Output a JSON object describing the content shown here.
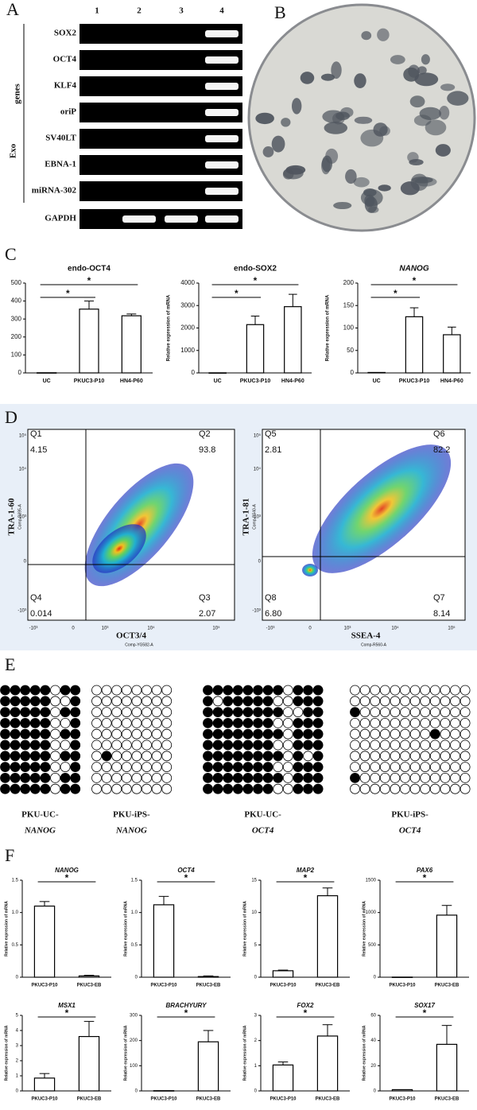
{
  "panel_labels": [
    "A",
    "B",
    "C",
    "D",
    "E",
    "F"
  ],
  "gel": {
    "lanes": [
      "1",
      "2",
      "3",
      "4"
    ],
    "group_label": [
      "genes",
      "Exo"
    ],
    "rows": [
      {
        "label": "SOX2",
        "bands": [
          0,
          0,
          0,
          1
        ]
      },
      {
        "label": "OCT4",
        "bands": [
          0,
          0,
          0,
          1
        ]
      },
      {
        "label": "KLF4",
        "bands": [
          0,
          0,
          0,
          1
        ]
      },
      {
        "label": "oriP",
        "bands": [
          0,
          0,
          0,
          1
        ]
      },
      {
        "label": "SV40LT",
        "bands": [
          0,
          0,
          0,
          1
        ]
      },
      {
        "label": "EBNA-1",
        "bands": [
          0,
          0,
          0,
          1
        ]
      },
      {
        "label": "miRNA-302",
        "bands": [
          0,
          0,
          0,
          1
        ]
      },
      {
        "label": "GAPDH",
        "bands": [
          0,
          1,
          1,
          1
        ]
      }
    ]
  },
  "flow": [
    {
      "y_label": "TRA-1-60",
      "y_sub": "Comp-B695-A",
      "x_label": "OCT3/4",
      "x_sub": "Comp-YG582-A",
      "x_ticks": [
        "-10³",
        "0",
        "10³",
        "10⁴",
        "10⁵"
      ],
      "y_ticks": [
        "10⁵",
        "10⁴",
        "10³",
        "0",
        "-10³"
      ],
      "quadrants": [
        {
          "name": "Q1",
          "value": 4.15
        },
        {
          "name": "Q2",
          "value": 93.8
        },
        {
          "name": "Q3",
          "value": 2.07
        },
        {
          "name": "Q4",
          "value": 0.014
        }
      ]
    },
    {
      "y_label": "TRA-1-81",
      "y_sub": "Comp-B540-A",
      "x_label": "SSEA-4",
      "x_sub": "Comp-R560-A",
      "x_ticks": [
        "-10³",
        "0",
        "10³",
        "10⁴",
        "10⁵"
      ],
      "y_ticks": [
        "10⁵",
        "10⁴",
        "10³",
        "0",
        "-10³"
      ],
      "quadrants": [
        {
          "name": "Q5",
          "value": 2.81
        },
        {
          "name": "Q6",
          "value": 82.2
        },
        {
          "name": "Q7",
          "value": 8.14
        },
        {
          "name": "Q8",
          "value": 6.8,
          "label": "6.80"
        }
      ]
    }
  ],
  "methylation": [
    {
      "label": "PKU-UC-",
      "gene": "NANOG",
      "rows": [
        [
          1,
          1,
          1,
          1,
          1,
          0,
          1,
          1
        ],
        [
          1,
          1,
          1,
          1,
          1,
          0,
          0,
          1
        ],
        [
          1,
          1,
          1,
          1,
          1,
          0,
          1,
          1
        ],
        [
          1,
          1,
          1,
          1,
          1,
          0,
          0,
          1
        ],
        [
          1,
          1,
          1,
          1,
          1,
          0,
          1,
          1
        ],
        [
          1,
          1,
          1,
          1,
          1,
          0,
          0,
          1
        ],
        [
          1,
          1,
          1,
          1,
          1,
          0,
          1,
          1
        ],
        [
          1,
          1,
          1,
          1,
          1,
          0,
          0,
          1
        ],
        [
          1,
          1,
          1,
          1,
          1,
          0,
          1,
          1
        ],
        [
          1,
          1,
          1,
          1,
          1,
          0,
          1,
          1
        ]
      ]
    },
    {
      "label": "PKU-iPS-",
      "gene": "NANOG",
      "rows": [
        [
          0,
          0,
          0,
          0,
          0,
          0,
          0,
          0
        ],
        [
          0,
          0,
          0,
          0,
          0,
          0,
          0,
          0
        ],
        [
          0,
          0,
          0,
          0,
          0,
          0,
          0,
          0
        ],
        [
          0,
          0,
          0,
          0,
          0,
          0,
          0,
          0
        ],
        [
          0,
          0,
          0,
          0,
          0,
          0,
          0,
          0
        ],
        [
          0,
          0,
          0,
          0,
          0,
          0,
          0,
          0
        ],
        [
          0,
          1,
          0,
          0,
          0,
          0,
          0,
          0
        ],
        [
          0,
          0,
          0,
          0,
          0,
          0,
          0,
          0
        ],
        [
          0,
          0,
          0,
          0,
          0,
          0,
          0,
          0
        ],
        [
          0,
          0,
          0,
          0,
          0,
          0,
          0,
          0
        ]
      ]
    },
    {
      "label": "PKU-UC-",
      "gene": "OCT4",
      "rows": [
        [
          1,
          1,
          1,
          1,
          1,
          1,
          1,
          1,
          0,
          1,
          1,
          1
        ],
        [
          1,
          0,
          1,
          1,
          1,
          1,
          1,
          0,
          0,
          1,
          1,
          1
        ],
        [
          1,
          1,
          1,
          1,
          1,
          1,
          1,
          1,
          0,
          0,
          1,
          1
        ],
        [
          1,
          1,
          1,
          1,
          1,
          1,
          1,
          0,
          0,
          1,
          1,
          1
        ],
        [
          1,
          1,
          1,
          1,
          1,
          1,
          1,
          1,
          0,
          1,
          1,
          1
        ],
        [
          1,
          1,
          1,
          1,
          1,
          1,
          1,
          0,
          0,
          1,
          1,
          1
        ],
        [
          1,
          1,
          1,
          1,
          1,
          1,
          1,
          1,
          0,
          1,
          0,
          1
        ],
        [
          1,
          1,
          1,
          1,
          1,
          1,
          1,
          0,
          0,
          1,
          1,
          1
        ],
        [
          1,
          1,
          1,
          1,
          1,
          1,
          1,
          1,
          0,
          1,
          1,
          1
        ],
        [
          1,
          1,
          1,
          1,
          1,
          1,
          1,
          0,
          0,
          1,
          1,
          1
        ]
      ]
    },
    {
      "label": "PKU-iPS-",
      "gene": "OCT4",
      "rows": [
        [
          0,
          0,
          0,
          0,
          0,
          0,
          0,
          0,
          0,
          0,
          0,
          0
        ],
        [
          0,
          0,
          0,
          0,
          0,
          0,
          0,
          0,
          0,
          0,
          0,
          0
        ],
        [
          1,
          0,
          0,
          0,
          0,
          0,
          0,
          0,
          0,
          0,
          0,
          0
        ],
        [
          0,
          0,
          0,
          0,
          0,
          0,
          0,
          0,
          0,
          0,
          0,
          0
        ],
        [
          0,
          0,
          0,
          0,
          0,
          0,
          0,
          0,
          1,
          0,
          0,
          0
        ],
        [
          0,
          0,
          0,
          0,
          0,
          0,
          0,
          0,
          0,
          0,
          0,
          0
        ],
        [
          0,
          0,
          0,
          0,
          0,
          0,
          0,
          0,
          0,
          0,
          0,
          0
        ],
        [
          0,
          0,
          0,
          0,
          0,
          0,
          0,
          0,
          0,
          0,
          0,
          0
        ],
        [
          1,
          0,
          0,
          0,
          0,
          0,
          0,
          0,
          0,
          0,
          0,
          0
        ],
        [
          0,
          0,
          0,
          0,
          0,
          0,
          0,
          0,
          0,
          0,
          0,
          0
        ]
      ]
    }
  ],
  "chart_data": [
    {
      "type": "bar",
      "title": "endo-OCT4",
      "categories": [
        "UC",
        "PKUC3-P10",
        "HN4-P60"
      ],
      "values": [
        1,
        355,
        318
      ],
      "errors": [
        0,
        45,
        10
      ],
      "color": "#ffffff",
      "ylim": [
        0,
        500
      ],
      "yticks": [
        0,
        100,
        200,
        300,
        400,
        500
      ],
      "annotations": [
        "*",
        "*"
      ]
    },
    {
      "type": "bar",
      "title": "endo-SOX2",
      "ylabel": "Relative expression of mRNA",
      "categories": [
        "UC",
        "PKUC3-P10",
        "HN4-P60"
      ],
      "values": [
        5,
        2150,
        2950
      ],
      "errors": [
        0,
        380,
        550
      ],
      "color": "#ffffff",
      "ylim": [
        0,
        4000
      ],
      "yticks": [
        0,
        1000,
        2000,
        3000,
        4000
      ],
      "annotations": [
        "*",
        "*"
      ]
    },
    {
      "type": "bar",
      "title": "NANOG",
      "title_italic": true,
      "ylabel": "Relative expression of mRNA",
      "categories": [
        "UC",
        "PKUC3-P10",
        "HN4-P60"
      ],
      "values": [
        1,
        125,
        85
      ],
      "errors": [
        0,
        20,
        17
      ],
      "color": "#ffffff",
      "ylim": [
        0,
        200
      ],
      "yticks": [
        0,
        50,
        100,
        150,
        200
      ],
      "annotations": [
        "*",
        "*"
      ]
    },
    {
      "type": "bar",
      "title": "NANOG",
      "title_italic": true,
      "ylabel": "Relative expression of mRNA",
      "categories": [
        "PKUC3-P10",
        "PKUC3-EB"
      ],
      "values": [
        1.1,
        0.02
      ],
      "errors": [
        0.07,
        0.01
      ],
      "color": "#ffffff",
      "ylim": [
        0,
        1.5
      ],
      "yticks": [
        0,
        0.5,
        {
          "value": 1,
          "label": "1.0"
        },
        1.5
      ],
      "annotations": [
        "*"
      ]
    },
    {
      "type": "bar",
      "title": "OCT4",
      "title_italic": true,
      "ylabel": "Relative expression of mRNA",
      "categories": [
        "PKUC3-P10",
        "PKUC3-EB"
      ],
      "values": [
        1.12,
        0.01
      ],
      "errors": [
        0.13,
        0.01
      ],
      "color": "#ffffff",
      "ylim": [
        0,
        1.5
      ],
      "yticks": [
        0,
        0.5,
        {
          "value": 1,
          "label": "1.0"
        },
        1.5
      ],
      "annotations": [
        "*"
      ]
    },
    {
      "type": "bar",
      "title": "MAP2",
      "title_italic": true,
      "ylabel": "Relative expression of mRNA",
      "categories": [
        "PKUC3-P10",
        "PKUC3-EB"
      ],
      "values": [
        1,
        12.6
      ],
      "errors": [
        0.1,
        1.2
      ],
      "color": "#ffffff",
      "ylim": [
        0,
        15
      ],
      "yticks": [
        0,
        5,
        10,
        15
      ],
      "annotations": [
        "*"
      ]
    },
    {
      "type": "bar",
      "title": "PAX6",
      "title_italic": true,
      "ylabel": "Relative expression of mRNA",
      "categories": [
        "PKUC3-P10",
        "PKUC3-EB"
      ],
      "values": [
        2,
        960
      ],
      "errors": [
        0,
        150
      ],
      "color": "#ffffff",
      "ylim": [
        0,
        1500
      ],
      "yticks": [
        0,
        500,
        1000,
        1500
      ],
      "annotations": [
        "*"
      ]
    },
    {
      "type": "bar",
      "title": "MSX1",
      "title_italic": true,
      "ylabel": "Relative expression of mRNA",
      "categories": [
        "PKUC3-P10",
        "PKUC3-EB"
      ],
      "values": [
        0.85,
        3.6
      ],
      "errors": [
        0.3,
        1
      ],
      "color": "#ffffff",
      "ylim": [
        0,
        5
      ],
      "yticks": [
        0,
        1,
        2,
        3,
        4,
        5
      ],
      "annotations": [
        "*"
      ]
    },
    {
      "type": "bar",
      "title": "BRACHYURY",
      "title_italic": true,
      "ylabel": "Relative expression of mRNA",
      "categories": [
        "PKUC3-P10",
        "PKUC3-EB"
      ],
      "values": [
        1,
        195
      ],
      "errors": [
        0,
        45
      ],
      "color": "#ffffff",
      "ylim": [
        0,
        300
      ],
      "yticks": [
        0,
        100,
        200,
        300
      ],
      "annotations": [
        "*"
      ]
    },
    {
      "type": "bar",
      "title": "FOX2",
      "title_italic": true,
      "ylabel": "Relative expression of mRNA",
      "categories": [
        "PKUC3-P10",
        "PKUC3-EB"
      ],
      "values": [
        1.03,
        2.18
      ],
      "errors": [
        0.12,
        0.45
      ],
      "color": "#ffffff",
      "ylim": [
        0,
        3
      ],
      "yticks": [
        0,
        1,
        2,
        3
      ],
      "annotations": [
        "*"
      ]
    },
    {
      "type": "bar",
      "title": "SOX17",
      "title_italic": true,
      "ylabel": "Relative expression of mRNA",
      "categories": [
        "PKUC3-P10",
        "PKUC3-EB"
      ],
      "values": [
        1,
        37
      ],
      "errors": [
        0,
        15
      ],
      "color": "#ffffff",
      "ylim": [
        0,
        60
      ],
      "yticks": [
        0,
        20,
        40,
        60
      ],
      "annotations": [
        "*"
      ]
    }
  ]
}
